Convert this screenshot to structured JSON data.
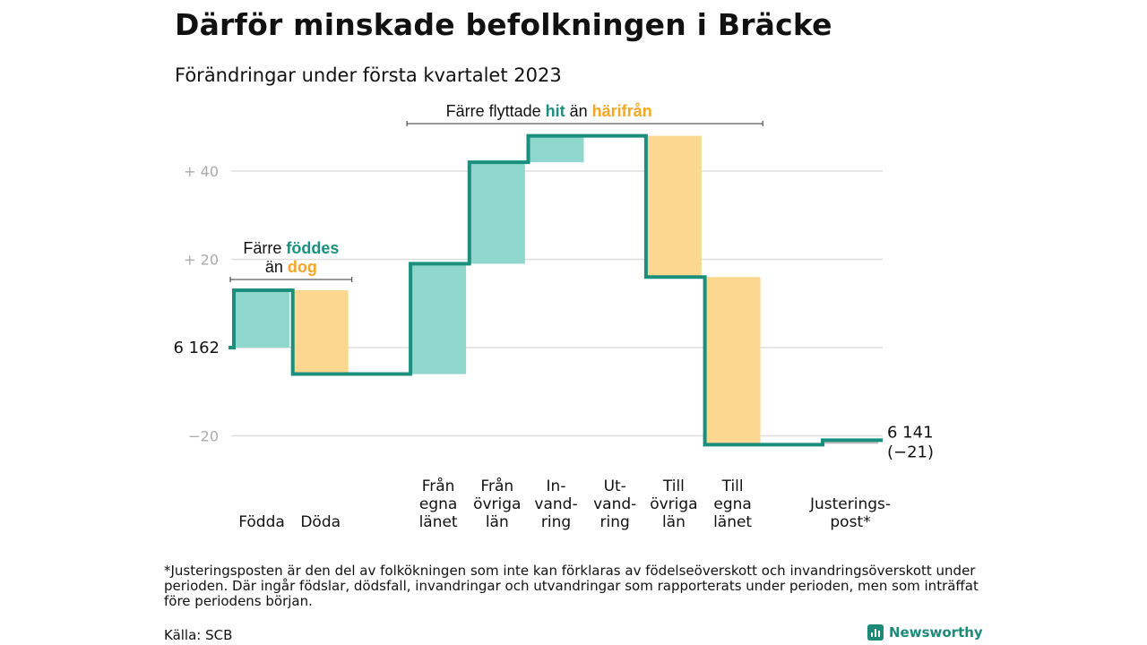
{
  "header": {
    "title": "Därför minskade befolkningen i Bräcke",
    "subtitle": "Förändringar under första kvartalet 2023"
  },
  "colors": {
    "teal_line": "#1a8f7d",
    "teal_fill": "#8fd6cc",
    "orange_fill": "#fbd78f",
    "orange_text": "#f5a623",
    "teal_text": "#1b9080",
    "adjust_grey": "#bfbfbf",
    "grid": "#dddddd",
    "tick_text": "#aaaaaa"
  },
  "chart_data": {
    "type": "waterfall",
    "start": {
      "label": "6 162",
      "value": 0
    },
    "end": {
      "label_lines": [
        "6 141",
        "(−21)"
      ],
      "value": -21
    },
    "y_ticks": [
      {
        "value": 40,
        "label": "+ 40"
      },
      {
        "value": 20,
        "label": "+ 20"
      },
      {
        "value": 0,
        "label": ""
      },
      {
        "value": -20,
        "label": "−20"
      }
    ],
    "ylim": [
      -21,
      49
    ],
    "steps": [
      {
        "label_lines": [
          "Födda"
        ],
        "delta": 13,
        "kind": "in"
      },
      {
        "label_lines": [
          "Döda"
        ],
        "delta": -19,
        "kind": "out"
      },
      {
        "label_lines": [
          ""
        ],
        "delta": 0,
        "kind": "gap"
      },
      {
        "label_lines": [
          "Från",
          "egna",
          "länet"
        ],
        "delta": 25,
        "kind": "in"
      },
      {
        "label_lines": [
          "Från",
          "övriga",
          "län"
        ],
        "delta": 23,
        "kind": "in"
      },
      {
        "label_lines": [
          "In-",
          "vand-",
          "ring"
        ],
        "delta": 6,
        "kind": "in"
      },
      {
        "label_lines": [
          "Ut-",
          "vand-",
          "ring"
        ],
        "delta": 0,
        "kind": "out"
      },
      {
        "label_lines": [
          "Till",
          "övriga",
          "län"
        ],
        "delta": -32,
        "kind": "out"
      },
      {
        "label_lines": [
          "Till",
          "egna",
          "länet"
        ],
        "delta": -38,
        "kind": "out"
      },
      {
        "label_lines": [
          ""
        ],
        "delta": 0,
        "kind": "gap"
      },
      {
        "label_lines": [
          "Justerings-",
          "post*"
        ],
        "delta": 1,
        "kind": "adjust"
      }
    ],
    "annotations": [
      {
        "lines": [
          [
            {
              "text": "Färre ",
              "style": "plain"
            },
            {
              "text": "föddes",
              "style": "teal"
            }
          ],
          [
            {
              "text": "än ",
              "style": "plain"
            },
            {
              "text": "dog",
              "style": "orange"
            }
          ]
        ],
        "span_steps": [
          0,
          1
        ]
      },
      {
        "lines": [
          [
            {
              "text": "Färre flyttade ",
              "style": "plain"
            },
            {
              "text": "hit",
              "style": "teal"
            },
            {
              "text": " än ",
              "style": "plain"
            },
            {
              "text": "härifrån",
              "style": "orange"
            }
          ]
        ],
        "span_steps": [
          3,
          6
        ]
      }
    ]
  },
  "footer": {
    "footnote": "*Justeringsposten är den del av folkökningen som inte kan förklaras av födelseöverskott och invandringsöverskott under perioden. Där ingår födslar, dödsfall, invandringar och utvandringar som rapporterats under perioden, men som inträffat före periodens början.",
    "source": "Källa: SCB",
    "brand": "Newsworthy"
  }
}
